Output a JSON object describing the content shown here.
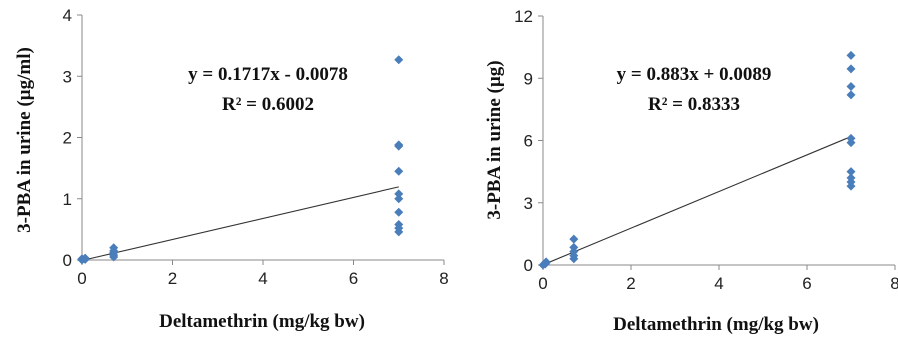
{
  "chart_data": [
    {
      "type": "scatter",
      "xlabel": "Deltamethrin (mg/kg bw)",
      "ylabel": "3-PBA in urine (µg/ml)",
      "xlim": [
        0,
        8
      ],
      "ylim": [
        0,
        4
      ],
      "x_ticks": [
        "0",
        "2",
        "4",
        "6",
        "8"
      ],
      "y_ticks": [
        "0",
        "1",
        "2",
        "3",
        "4"
      ],
      "grid": false,
      "series": [
        {
          "color": "#4a7ebb",
          "points": [
            {
              "x": 0,
              "y": 0.0
            },
            {
              "x": 0,
              "y": 0.01
            },
            {
              "x": 0,
              "y": 0.02
            },
            {
              "x": 0.07,
              "y": 0.01
            },
            {
              "x": 0.07,
              "y": 0.03
            },
            {
              "x": 0.7,
              "y": 0.05
            },
            {
              "x": 0.7,
              "y": 0.08
            },
            {
              "x": 0.7,
              "y": 0.12
            },
            {
              "x": 0.7,
              "y": 0.15
            },
            {
              "x": 0.7,
              "y": 0.2
            },
            {
              "x": 7,
              "y": 3.27
            },
            {
              "x": 7,
              "y": 1.88
            },
            {
              "x": 7,
              "y": 1.86
            },
            {
              "x": 7,
              "y": 1.45
            },
            {
              "x": 7,
              "y": 1.08
            },
            {
              "x": 7,
              "y": 1.0
            },
            {
              "x": 7,
              "y": 0.78
            },
            {
              "x": 7,
              "y": 0.58
            },
            {
              "x": 7,
              "y": 0.52
            },
            {
              "x": 7,
              "y": 0.46
            }
          ]
        }
      ],
      "trendline": {
        "slope": 0.1717,
        "intercept": -0.0078,
        "x_range": [
          0,
          7
        ],
        "color": "#333333"
      },
      "annotations": [
        "y = 0.1717x - 0.0078",
        "R² = 0.6002"
      ]
    },
    {
      "type": "scatter",
      "xlabel": "Deltamethrin (mg/kg bw)",
      "ylabel": "3-PBA in urine (µg)",
      "xlim": [
        0,
        8
      ],
      "ylim": [
        0,
        12
      ],
      "x_ticks": [
        "0",
        "2",
        "4",
        "6",
        "8"
      ],
      "y_ticks": [
        "0",
        "3",
        "6",
        "9",
        "12"
      ],
      "grid": false,
      "series": [
        {
          "color": "#4a7ebb",
          "points": [
            {
              "x": 0,
              "y": 0.0
            },
            {
              "x": 0.05,
              "y": 0.05
            },
            {
              "x": 0.07,
              "y": 0.1
            },
            {
              "x": 0.07,
              "y": 0.15
            },
            {
              "x": 0.7,
              "y": 0.3
            },
            {
              "x": 0.7,
              "y": 0.45
            },
            {
              "x": 0.7,
              "y": 0.65
            },
            {
              "x": 0.7,
              "y": 0.85
            },
            {
              "x": 0.7,
              "y": 1.25
            },
            {
              "x": 7,
              "y": 10.1
            },
            {
              "x": 7,
              "y": 9.45
            },
            {
              "x": 7,
              "y": 8.6
            },
            {
              "x": 7,
              "y": 8.2
            },
            {
              "x": 7,
              "y": 6.1
            },
            {
              "x": 7,
              "y": 5.9
            },
            {
              "x": 7,
              "y": 4.5
            },
            {
              "x": 7,
              "y": 4.2
            },
            {
              "x": 7,
              "y": 4.0
            },
            {
              "x": 7,
              "y": 3.8
            }
          ]
        }
      ],
      "trendline": {
        "slope": 0.883,
        "intercept": 0.0089,
        "x_range": [
          0,
          7
        ],
        "color": "#333333"
      },
      "annotations": [
        "y = 0.883x + 0.0089",
        "R² = 0.8333"
      ]
    }
  ]
}
